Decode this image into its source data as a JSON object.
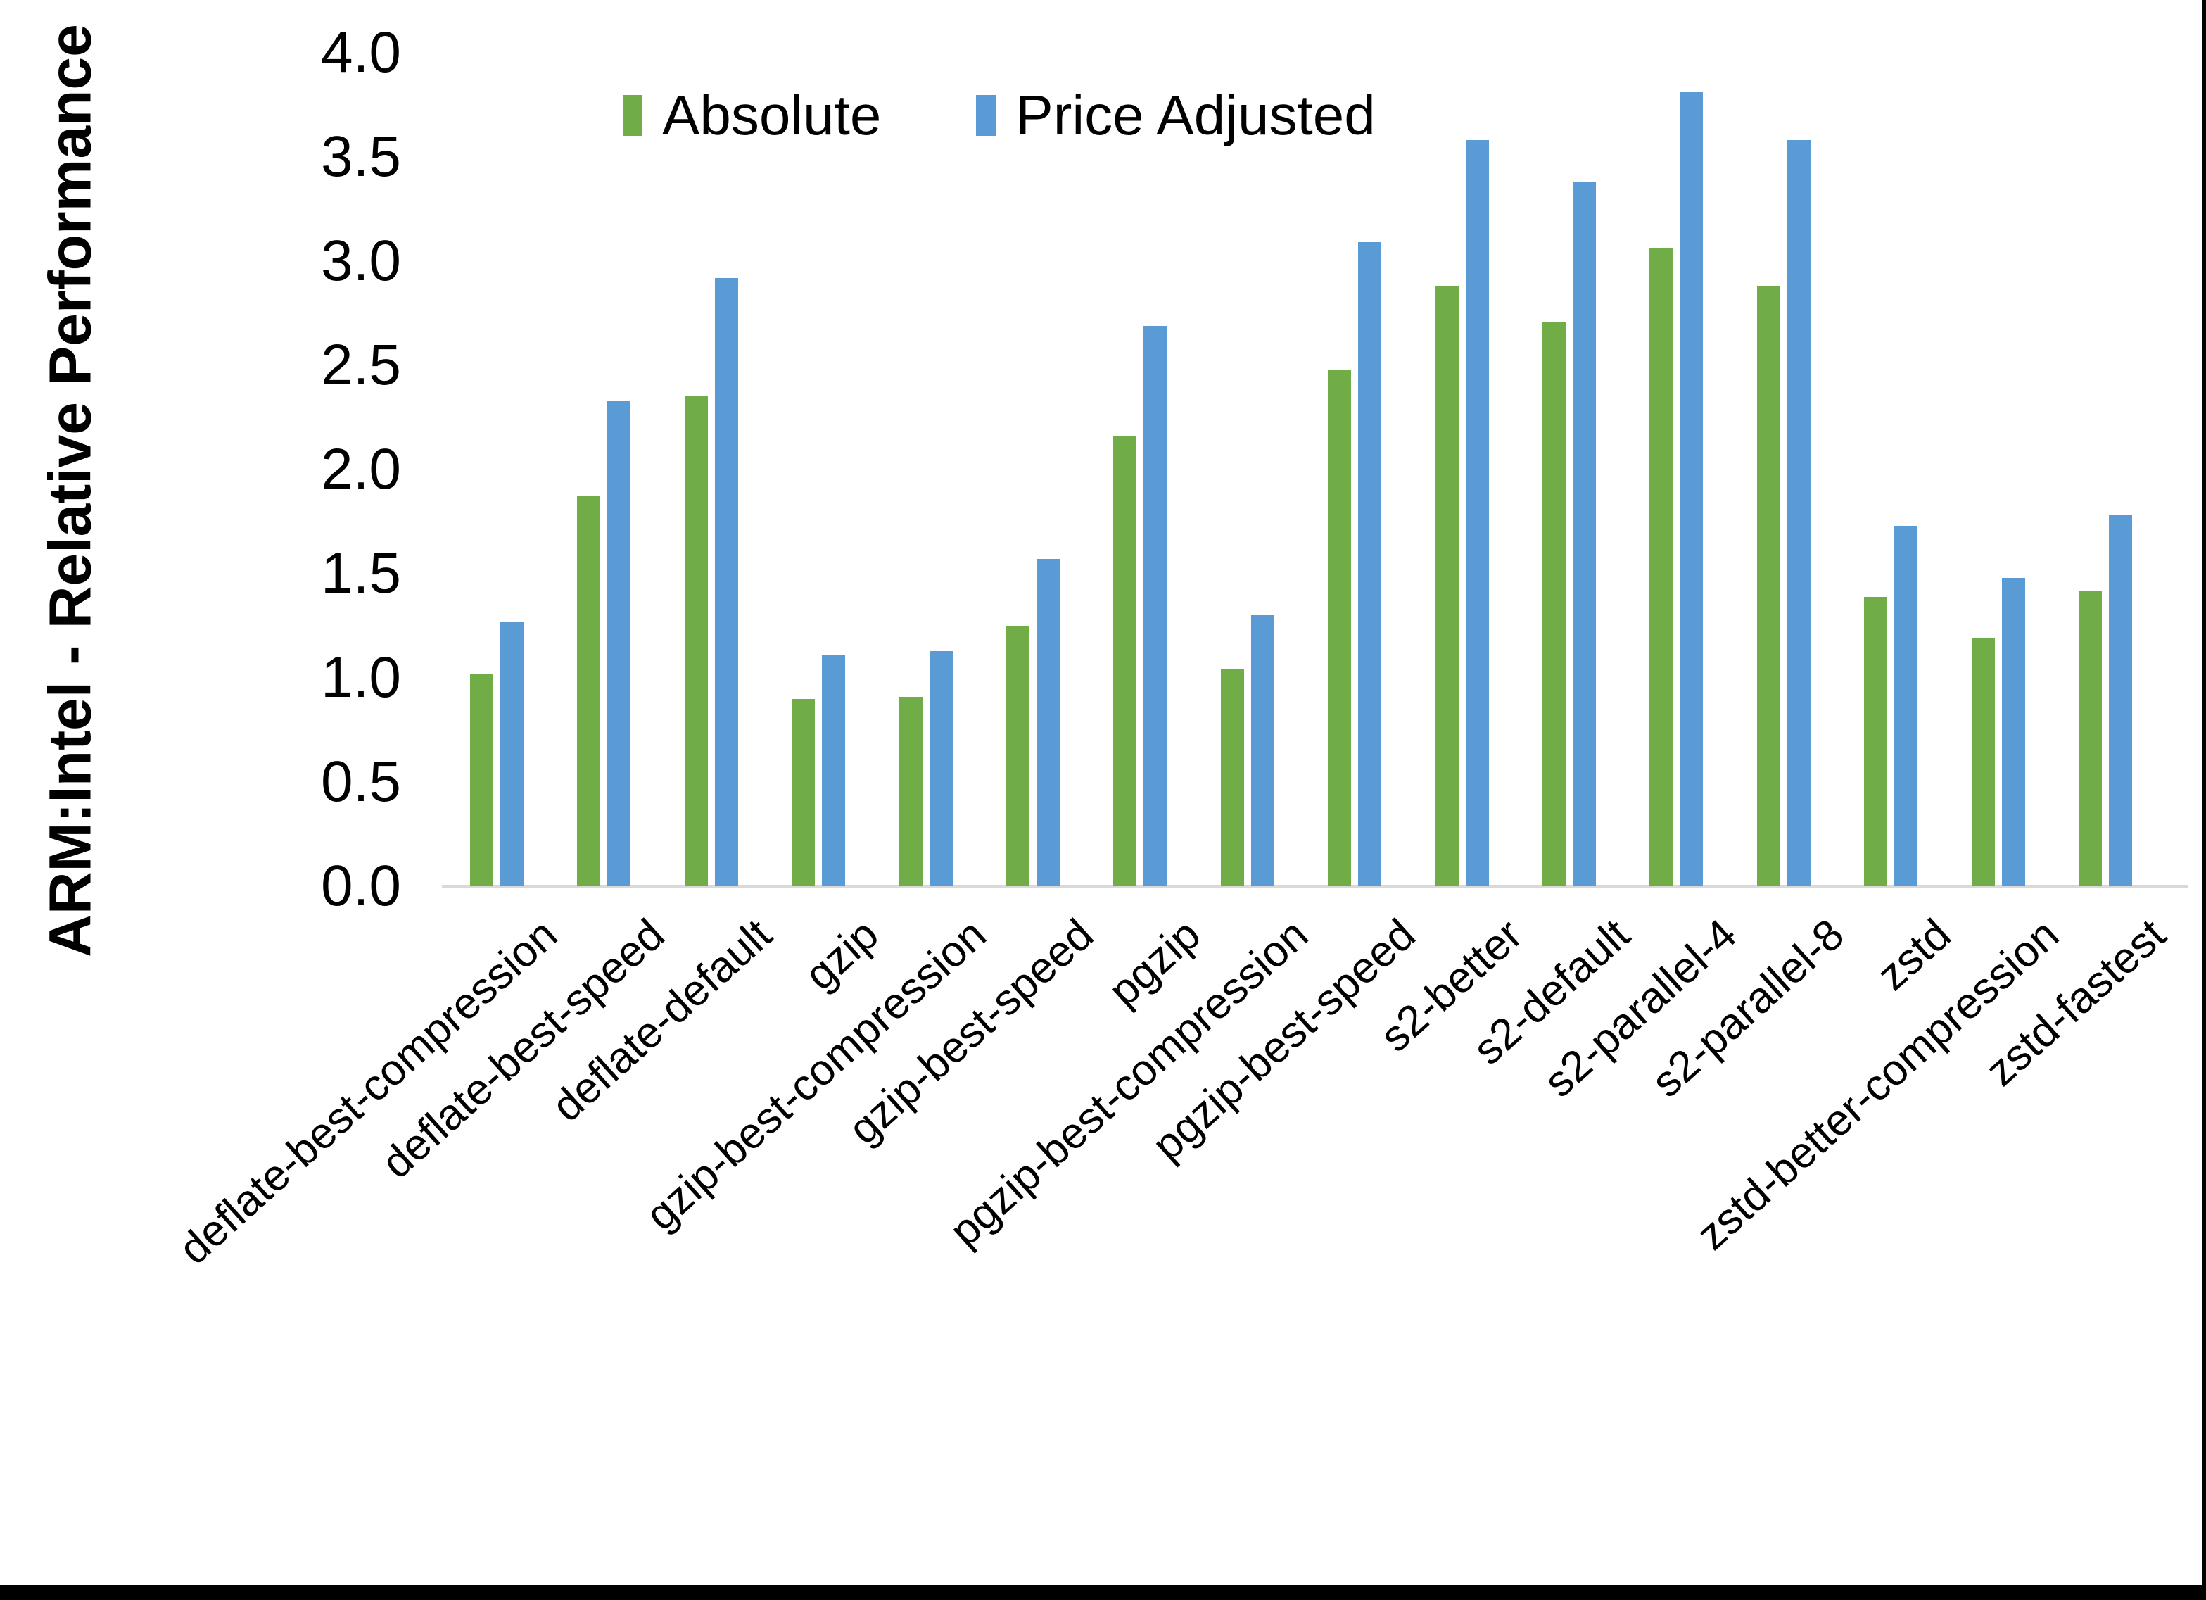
{
  "chart_data": {
    "type": "bar",
    "title": "",
    "xlabel": "",
    "ylabel": "ARM:Intel - Relative Performance",
    "ylim": [
      0.0,
      4.0
    ],
    "ytick_labels": [
      "0.0",
      "0.5",
      "1.0",
      "1.5",
      "2.0",
      "2.5",
      "3.0",
      "3.5",
      "4.0"
    ],
    "grid": false,
    "legend_position": "top-center",
    "categories": [
      "deflate-best-compression",
      "deflate-best-speed",
      "deflate-default",
      "gzip",
      "gzip-best-compression",
      "gzip-best-speed",
      "pgzip",
      "pgzip-best-compression",
      "pgzip-best-speed",
      "s2-better",
      "s2-default",
      "s2-parallel-4",
      "s2-parallel-8",
      "zstd",
      "zstd-better-compression",
      "zstd-fastest"
    ],
    "series": [
      {
        "name": "Absolute",
        "color": "#70AD47",
        "values": [
          1.02,
          1.87,
          2.35,
          0.9,
          0.91,
          1.25,
          2.16,
          1.04,
          2.48,
          2.88,
          2.71,
          3.06,
          2.88,
          1.39,
          1.19,
          1.42
        ]
      },
      {
        "name": "Price Adjusted",
        "color": "#5B9BD5",
        "values": [
          1.27,
          2.33,
          2.92,
          1.11,
          1.13,
          1.57,
          2.69,
          1.3,
          3.09,
          3.58,
          3.38,
          3.81,
          3.58,
          1.73,
          1.48,
          1.78
        ]
      }
    ]
  },
  "colors": {
    "baseline": "#d9d9d9",
    "frame": "#000000",
    "background": "#ffffff"
  }
}
